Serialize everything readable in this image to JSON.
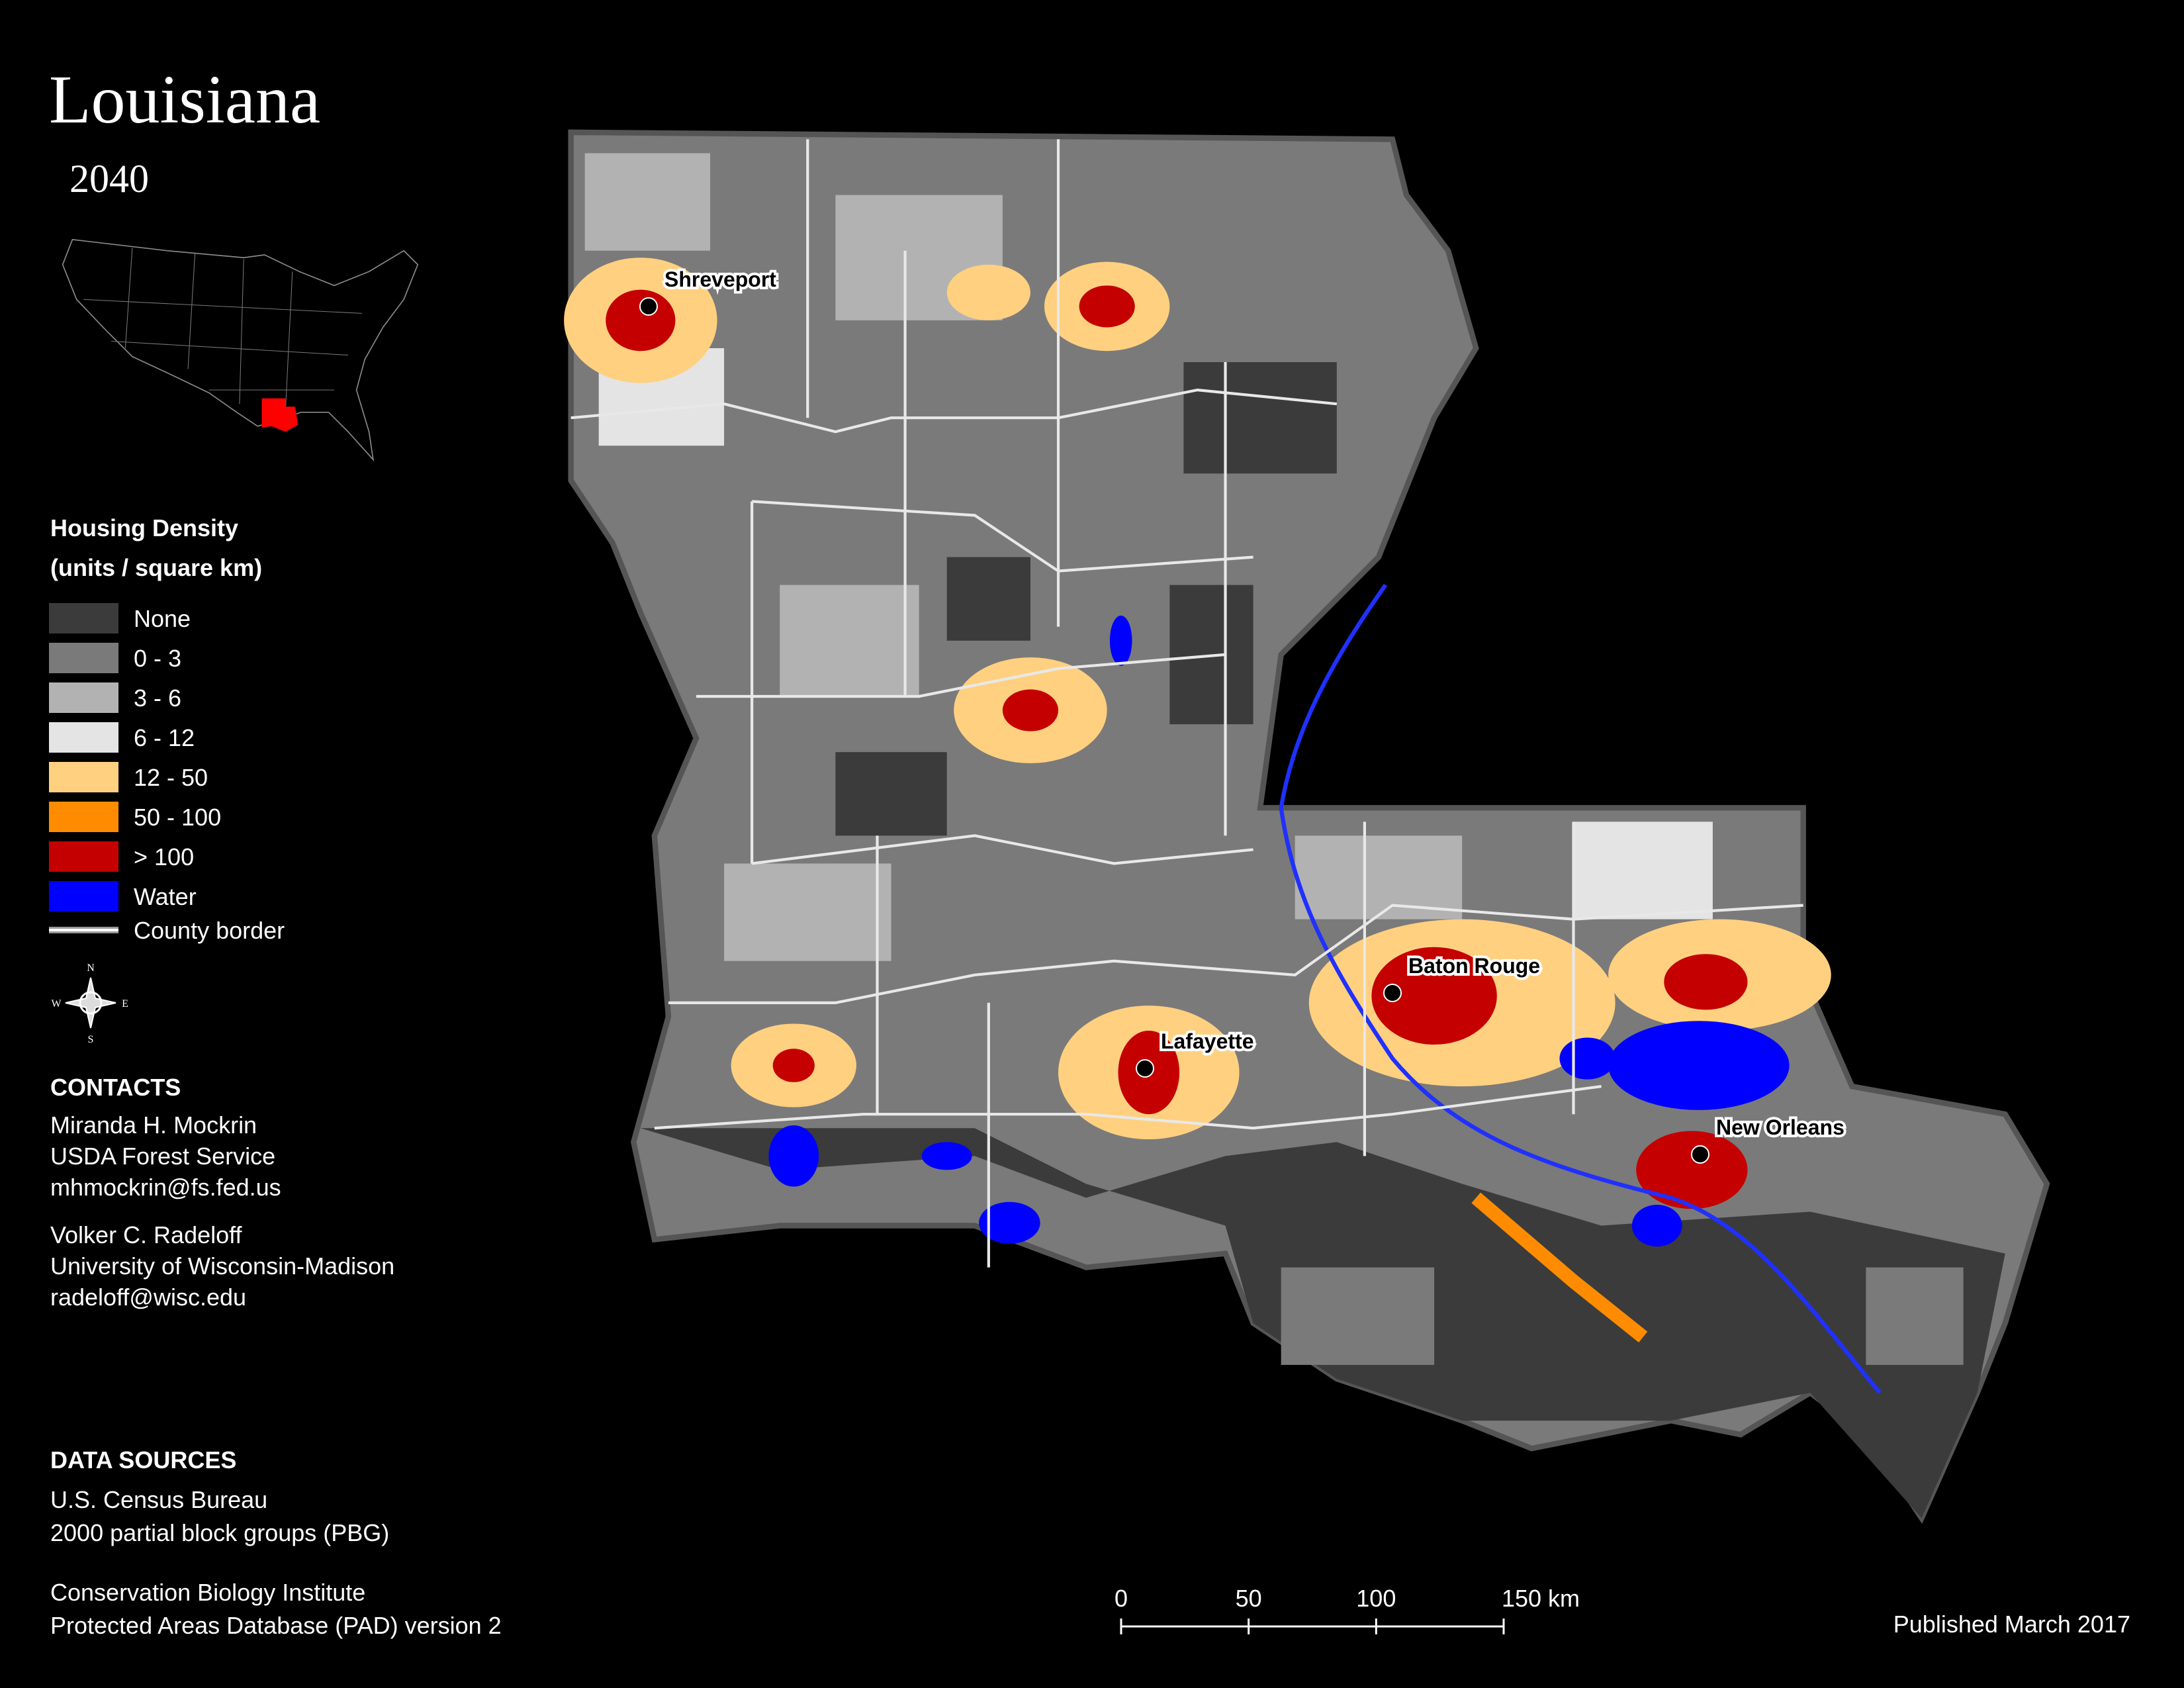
{
  "header": {
    "title": "Louisiana",
    "subtitle": "2040"
  },
  "legend": {
    "title": "Housing Density",
    "subtitle": "(units / square km)",
    "items": [
      {
        "label": "None",
        "color": "#3b3b3b"
      },
      {
        "label": "0 - 3",
        "color": "#7a7a7a"
      },
      {
        "label": "3 - 6",
        "color": "#b2b2b2"
      },
      {
        "label": "6 - 12",
        "color": "#e4e4e4"
      },
      {
        "label": "12 - 50",
        "color": "#ffd080"
      },
      {
        "label": "50 - 100",
        "color": "#ff8c00"
      },
      {
        "label": "> 100",
        "color": "#c40000"
      },
      {
        "label": "Water",
        "color": "#0000ff"
      }
    ],
    "border_label": "County border"
  },
  "compass": {
    "n": "N",
    "e": "E",
    "s": "S",
    "w": "W"
  },
  "cities": [
    {
      "name": "Shreveport"
    },
    {
      "name": "Baton Rouge"
    },
    {
      "name": "Lafayette"
    },
    {
      "name": "New Orleans"
    }
  ],
  "contacts": {
    "title": "CONTACTS",
    "people": [
      [
        "Miranda H. Mockrin",
        "USDA Forest Service",
        "mhmockrin@fs.fed.us"
      ],
      [
        "Volker C. Radeloff",
        "University of Wisconsin-Madison",
        "radeloff@wisc.edu"
      ]
    ]
  },
  "sources": {
    "title": "DATA SOURCES",
    "groups": [
      [
        "U.S. Census Bureau",
        "2000 partial block groups (PBG)"
      ],
      [
        "Conservation Biology Institute",
        "Protected Areas Database (PAD) version 2"
      ]
    ]
  },
  "scale_bar": {
    "ticks": [
      0,
      50,
      100,
      {
        "value": 150,
        "label": "150 km"
      }
    ]
  },
  "published": "Published March 2017"
}
